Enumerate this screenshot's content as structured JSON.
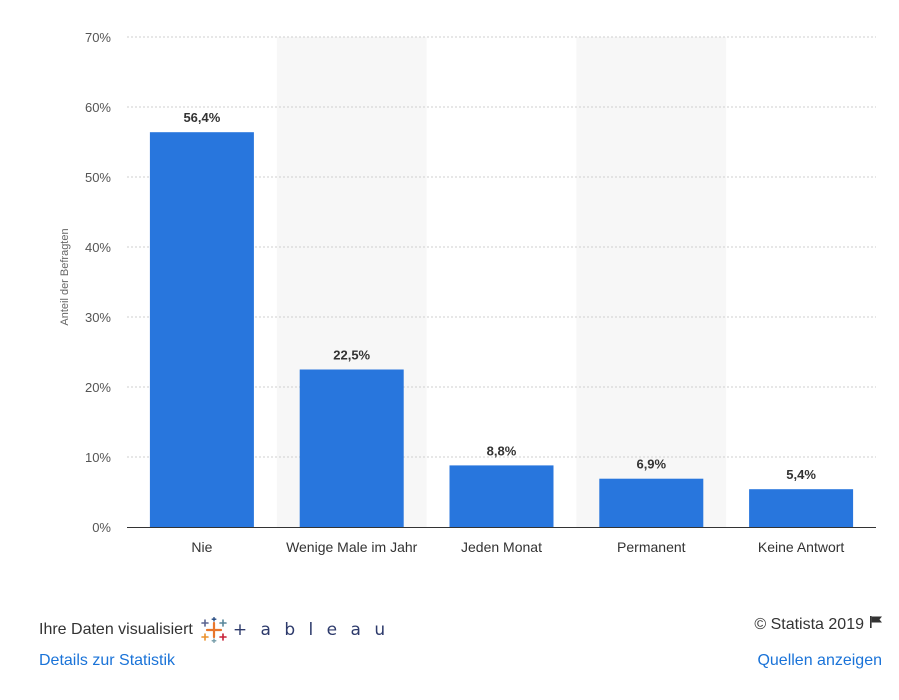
{
  "chart_data": {
    "type": "bar",
    "categories": [
      "Nie",
      "Wenige Male im Jahr",
      "Jeden Monat",
      "Permanent",
      "Keine Antwort"
    ],
    "values": [
      56.4,
      22.5,
      8.8,
      6.9,
      5.4
    ],
    "value_labels": [
      "56,4%",
      "22,5%",
      "8,8%",
      "6,9%",
      "5,4%"
    ],
    "ylabel": "Anteil der Befragten",
    "ylim": [
      0,
      70
    ],
    "yticks": [
      0,
      10,
      20,
      30,
      40,
      50,
      60,
      70
    ],
    "ytick_labels": [
      "0%",
      "10%",
      "20%",
      "30%",
      "40%",
      "50%",
      "60%",
      "70%"
    ],
    "grid": true,
    "bar_color": "#2876dd"
  },
  "footer": {
    "viz_text": "Ihre Daten visualisiert",
    "tableau_text": "+ a b l e a u",
    "copyright": "© Statista 2019",
    "details_link": "Details zur Statistik",
    "sources_link": "Quellen anzeigen"
  },
  "colors": {
    "link": "#1a73d8",
    "band": "#f7f7f7",
    "grid": "#cfcfcf"
  }
}
